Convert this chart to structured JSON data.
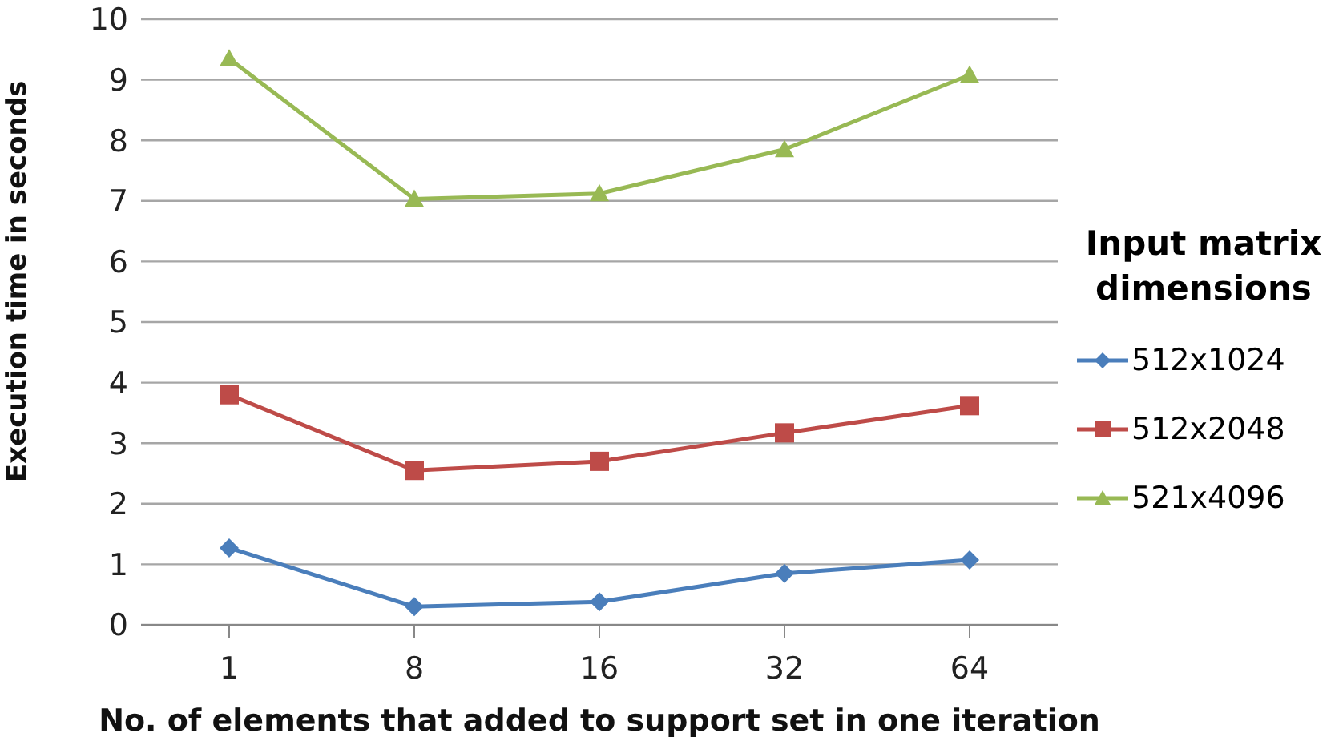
{
  "chart_data": {
    "type": "line",
    "xlabel": "No. of elements that added to support set in one iteration",
    "ylabel": "Execution time in seconds",
    "legend_title": "Input matrix dimensions",
    "categories": [
      "1",
      "8",
      "16",
      "32",
      "64"
    ],
    "series": [
      {
        "name": "512x1024",
        "color": "#4a7ebb",
        "marker": "diamond",
        "values": [
          1.27,
          0.3,
          0.38,
          0.85,
          1.07
        ]
      },
      {
        "name": "512x2048",
        "color": "#be4b48",
        "marker": "square",
        "values": [
          3.8,
          2.55,
          2.7,
          3.17,
          3.62
        ]
      },
      {
        "name": "521x4096",
        "color": "#98b954",
        "marker": "triangle",
        "values": [
          9.35,
          7.03,
          7.12,
          7.85,
          9.08
        ]
      }
    ],
    "ylim": [
      0,
      10
    ],
    "yticks": [
      0,
      1,
      2,
      3,
      4,
      5,
      6,
      7,
      8,
      9,
      10
    ],
    "grid": "y",
    "legend": "right",
    "line_style": "solid"
  }
}
